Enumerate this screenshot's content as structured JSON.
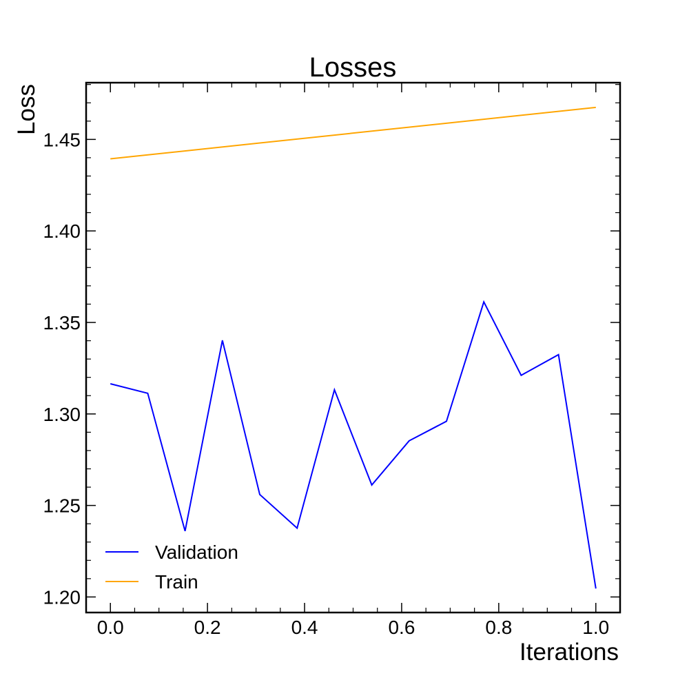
{
  "chart_data": {
    "type": "line",
    "title": "Losses",
    "xlabel": "Iterations",
    "ylabel": "Loss",
    "xlim": [
      -0.05,
      1.05
    ],
    "ylim": [
      1.1915,
      1.481
    ],
    "x_ticks": [
      0.0,
      0.2,
      0.4,
      0.6,
      0.8,
      1.0
    ],
    "x_tick_labels": [
      "0.0",
      "0.2",
      "0.4",
      "0.6",
      "0.8",
      "1.0"
    ],
    "y_ticks": [
      1.2,
      1.25,
      1.3,
      1.35,
      1.4,
      1.45
    ],
    "y_tick_labels": [
      "1.20",
      "1.25",
      "1.30",
      "1.35",
      "1.40",
      "1.45"
    ],
    "grid": false,
    "legend_position": "bottom-left",
    "series": [
      {
        "name": "Validation",
        "color": "#0000ff",
        "x": [
          0.0,
          0.0769,
          0.1538,
          0.2308,
          0.3077,
          0.3846,
          0.4615,
          0.5385,
          0.6154,
          0.6923,
          0.7692,
          0.8462,
          0.9231,
          1.0
        ],
        "y": [
          1.3165,
          1.3113,
          1.236,
          1.3402,
          1.256,
          1.2376,
          1.3132,
          1.2612,
          1.2853,
          1.296,
          1.3612,
          1.3211,
          1.3324,
          1.2046
        ]
      },
      {
        "name": "Train",
        "color": "#ffa500",
        "x": [
          0.0,
          1.0
        ],
        "y": [
          1.4394,
          1.4675
        ]
      }
    ]
  }
}
